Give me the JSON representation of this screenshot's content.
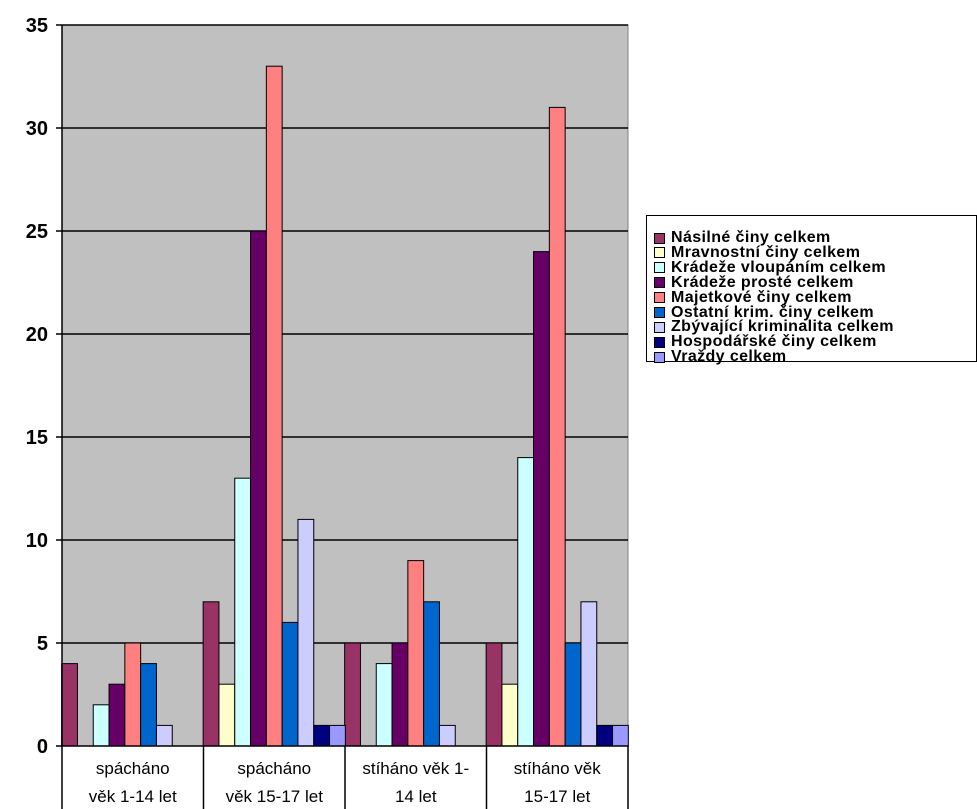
{
  "chart_data": {
    "type": "bar",
    "categories": [
      [
        "spácháno",
        "věk 1-14 let"
      ],
      [
        "spácháno",
        "věk 15-17 let"
      ],
      [
        "stíháno věk 1-",
        "14 let"
      ],
      [
        "stíháno věk",
        "15-17 let"
      ]
    ],
    "ylim": [
      0,
      35
    ],
    "yticks": [
      "0",
      "5",
      "10",
      "15",
      "20",
      "25",
      "30",
      "35"
    ],
    "grid": true,
    "plot_background": "#c0c0c0",
    "legend_position": "right",
    "series": [
      {
        "name": "Násilné činy celkem",
        "color": "#993366",
        "values": [
          4,
          7,
          5,
          5
        ]
      },
      {
        "name": "Mravnostní činy celkem",
        "color": "#ffffcc",
        "values": [
          0,
          3,
          0,
          3
        ]
      },
      {
        "name": "Krádeže vloupáním celkem",
        "color": "#ccffff",
        "values": [
          2,
          13,
          4,
          14
        ]
      },
      {
        "name": "Krádeže prosté celkem",
        "color": "#660066",
        "values": [
          3,
          25,
          5,
          24
        ]
      },
      {
        "name": "Majetkové činy celkem",
        "color": "#ff8080",
        "values": [
          5,
          33,
          9,
          31
        ]
      },
      {
        "name": "Ostatní krim. činy celkem",
        "color": "#0066cc",
        "values": [
          4,
          6,
          7,
          5
        ]
      },
      {
        "name": "Zbývající kriminalita celkem",
        "color": "#ccccff",
        "values": [
          1,
          11,
          1,
          7
        ]
      },
      {
        "name": "Hospodářské činy celkem",
        "color": "#000080",
        "values": [
          0,
          1,
          0,
          1
        ]
      },
      {
        "name": "Vraždy celkem",
        "color": "#9999ff",
        "values": [
          0,
          1,
          0,
          1
        ]
      }
    ]
  }
}
